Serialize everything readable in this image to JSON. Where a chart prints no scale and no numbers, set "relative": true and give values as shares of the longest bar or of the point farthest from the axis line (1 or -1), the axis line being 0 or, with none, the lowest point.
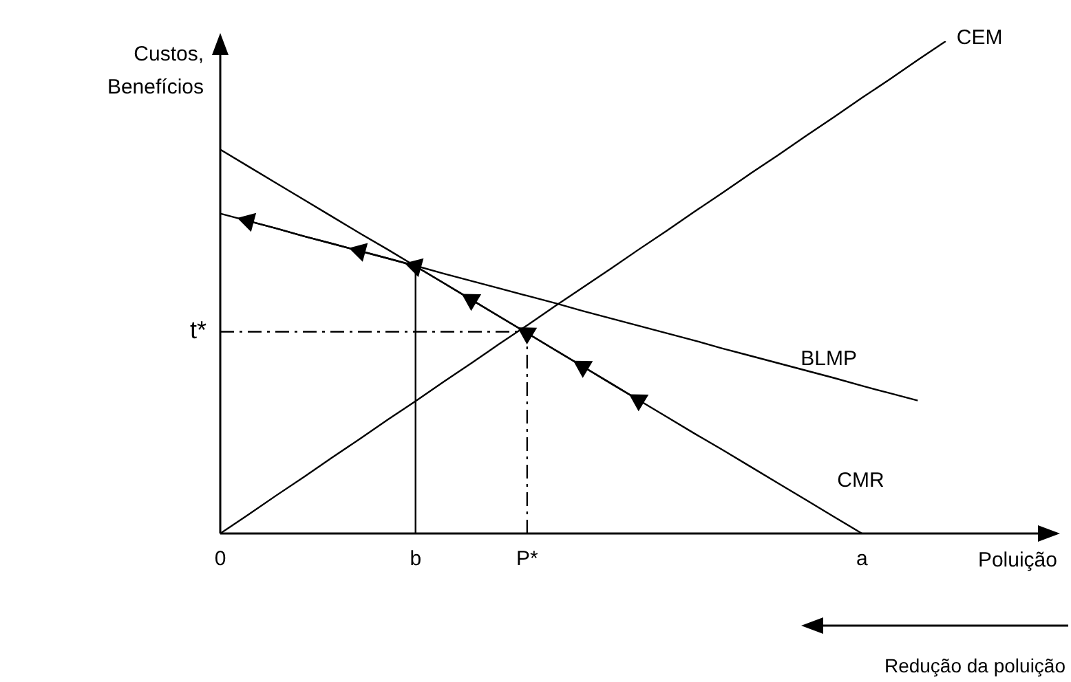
{
  "chart_data": {
    "type": "line",
    "relative": true,
    "xlabel": "Poluição",
    "ylabel": "Custos,\nBenefícios",
    "categories": [
      "0",
      null,
      null,
      null,
      null,
      null,
      null,
      "b",
      null,
      null,
      null,
      "P*",
      null,
      null,
      null,
      null,
      null,
      null,
      null,
      null,
      null,
      null,
      null,
      "a",
      null,
      null,
      null,
      null,
      null,
      null,
      null
    ],
    "series": [
      {
        "name": "CEM",
        "color": "#000000",
        "values": [
          0,
          0.038,
          0.077,
          0.115,
          0.154,
          0.192,
          0.231,
          0.269,
          0.308,
          0.346,
          0.385,
          0.423,
          0.462,
          0.5,
          0.538,
          0.577,
          0.615,
          0.654,
          0.692,
          0.731,
          0.769,
          0.808,
          0.846,
          0.885,
          0.923,
          0.962,
          1,
          null,
          null,
          null,
          null
        ]
      },
      {
        "name": "CMR",
        "color": "#000000",
        "values": [
          0.78,
          0.746,
          0.712,
          0.678,
          0.644,
          0.61,
          0.577,
          0.543,
          0.509,
          0.475,
          0.441,
          0.407,
          0.373,
          0.339,
          0.305,
          0.271,
          0.237,
          0.203,
          0.17,
          0.136,
          0.102,
          0.068,
          0.034,
          0,
          null,
          null,
          null,
          null,
          null,
          null,
          null
        ]
      },
      {
        "name": "BLMP",
        "color": "#000000",
        "values": [
          0.65,
          0.635,
          0.62,
          0.604,
          0.589,
          0.574,
          0.559,
          0.544,
          0.528,
          0.513,
          0.498,
          0.483,
          0.468,
          0.452,
          0.437,
          0.422,
          0.407,
          0.392,
          0.376,
          0.361,
          0.346,
          0.331,
          0.316,
          0.3,
          0.285,
          0.27,
          null,
          null,
          null,
          null,
          null
        ]
      },
      {
        "color": "#000000",
        "x": [
          "b",
          "b"
        ],
        "values": [
          0,
          0.543
        ]
      },
      {
        "color": "#000000",
        "line_style": "dashed",
        "x": [
          "0",
          "P*"
        ],
        "values": [
          0.41,
          0.41
        ]
      },
      {
        "color": "#000000",
        "line_style": "dashed",
        "x": [
          "P*",
          "P*"
        ],
        "values": [
          0,
          0.41
        ]
      },
      {
        "color": "#000000",
        "values": [
          null,
          0.635,
          0.62,
          0.604,
          0.589,
          0.574,
          0.559,
          0.543,
          0.509,
          0.475,
          0.441,
          0.407,
          0.373,
          0.339,
          0.305,
          0.271,
          null,
          null,
          null,
          null,
          null,
          null,
          null,
          null,
          null,
          null,
          null,
          null,
          null,
          null,
          null
        ]
      },
      {
        "type": "scatter",
        "color": "#000000",
        "marker": "triangle",
        "values": [
          null,
          0.635,
          null,
          null,
          null,
          0.574,
          null,
          0.543,
          null,
          0.475,
          null,
          0.407,
          null,
          0.339,
          null,
          0.271,
          null,
          null,
          null,
          null,
          null,
          null,
          null,
          null,
          null,
          null,
          null,
          null,
          null,
          null,
          null
        ]
      }
    ],
    "annotations": [
      {
        "text": "t*",
        "x": "0",
        "y": 0.41
      },
      "Redução da poluição"
    ]
  }
}
